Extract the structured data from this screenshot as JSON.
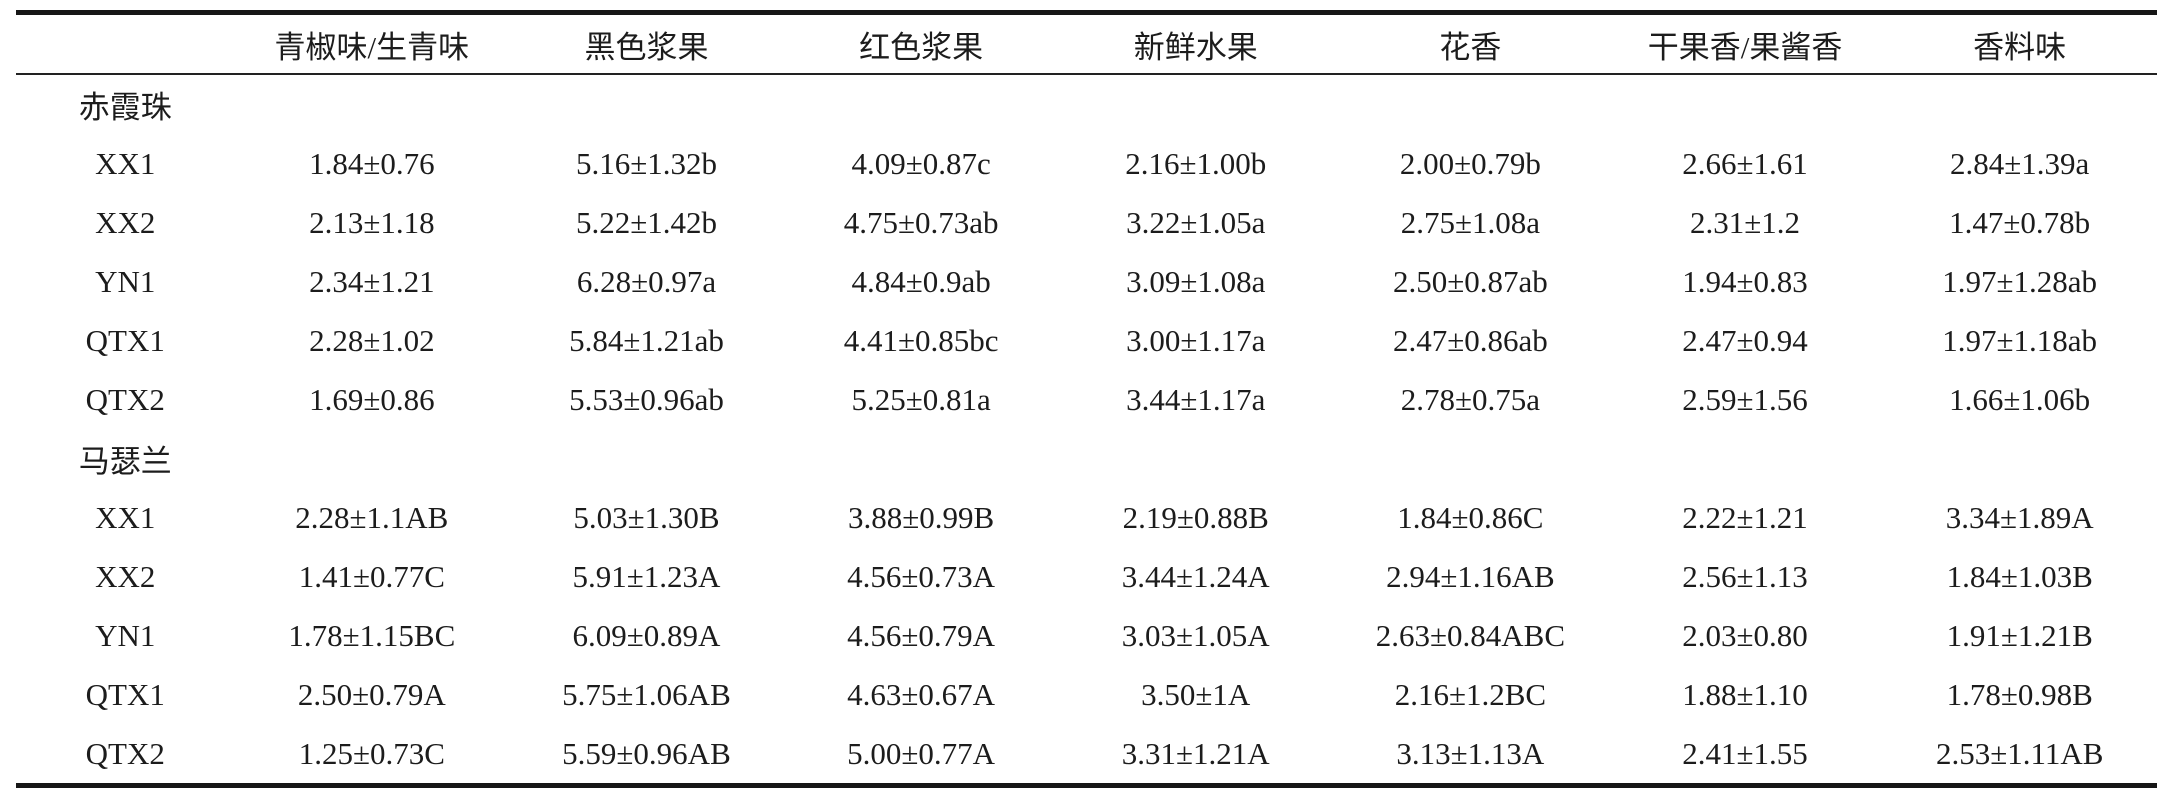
{
  "page": {
    "background": "#ffffff",
    "text_color": "#1c1c1c",
    "rule_color": "#161616"
  },
  "table": {
    "columns": [
      "",
      "青椒味/生青味",
      "黑色浆果",
      "红色浆果",
      "新鲜水果",
      "花香",
      "干果香/果酱香",
      "香料味"
    ],
    "groups": [
      {
        "label": "赤霞珠",
        "rows": [
          {
            "label": "XX1",
            "values": [
              "1.84±0.76",
              "5.16±1.32b",
              "4.09±0.87c",
              "2.16±1.00b",
              "2.00±0.79b",
              "2.66±1.61",
              "2.84±1.39a"
            ]
          },
          {
            "label": "XX2",
            "values": [
              "2.13±1.18",
              "5.22±1.42b",
              "4.75±0.73ab",
              "3.22±1.05a",
              "2.75±1.08a",
              "2.31±1.2",
              "1.47±0.78b"
            ]
          },
          {
            "label": "YN1",
            "values": [
              "2.34±1.21",
              "6.28±0.97a",
              "4.84±0.9ab",
              "3.09±1.08a",
              "2.50±0.87ab",
              "1.94±0.83",
              "1.97±1.28ab"
            ]
          },
          {
            "label": "QTX1",
            "values": [
              "2.28±1.02",
              "5.84±1.21ab",
              "4.41±0.85bc",
              "3.00±1.17a",
              "2.47±0.86ab",
              "2.47±0.94",
              "1.97±1.18ab"
            ]
          },
          {
            "label": "QTX2",
            "values": [
              "1.69±0.86",
              "5.53±0.96ab",
              "5.25±0.81a",
              "3.44±1.17a",
              "2.78±0.75a",
              "2.59±1.56",
              "1.66±1.06b"
            ]
          }
        ]
      },
      {
        "label": "马瑟兰",
        "rows": [
          {
            "label": "XX1",
            "values": [
              "2.28±1.1AB",
              "5.03±1.30B",
              "3.88±0.99B",
              "2.19±0.88B",
              "1.84±0.86C",
              "2.22±1.21",
              "3.34±1.89A"
            ]
          },
          {
            "label": "XX2",
            "values": [
              "1.41±0.77C",
              "5.91±1.23A",
              "4.56±0.73A",
              "3.44±1.24A",
              "2.94±1.16AB",
              "2.56±1.13",
              "1.84±1.03B"
            ]
          },
          {
            "label": "YN1",
            "values": [
              "1.78±1.15BC",
              "6.09±0.89A",
              "4.56±0.79A",
              "3.03±1.05A",
              "2.63±0.84ABC",
              "2.03±0.80",
              "1.91±1.21B"
            ]
          },
          {
            "label": "QTX1",
            "values": [
              "2.50±0.79A",
              "5.75±1.06AB",
              "4.63±0.67A",
              "3.50±1A",
              "2.16±1.2BC",
              "1.88±1.10",
              "1.78±0.98B"
            ]
          },
          {
            "label": "QTX2",
            "values": [
              "1.25±0.73C",
              "5.59±0.96AB",
              "5.00±0.77A",
              "3.31±1.21A",
              "3.13±1.13A",
              "2.41±1.55",
              "2.53±1.11AB"
            ]
          }
        ]
      }
    ]
  }
}
